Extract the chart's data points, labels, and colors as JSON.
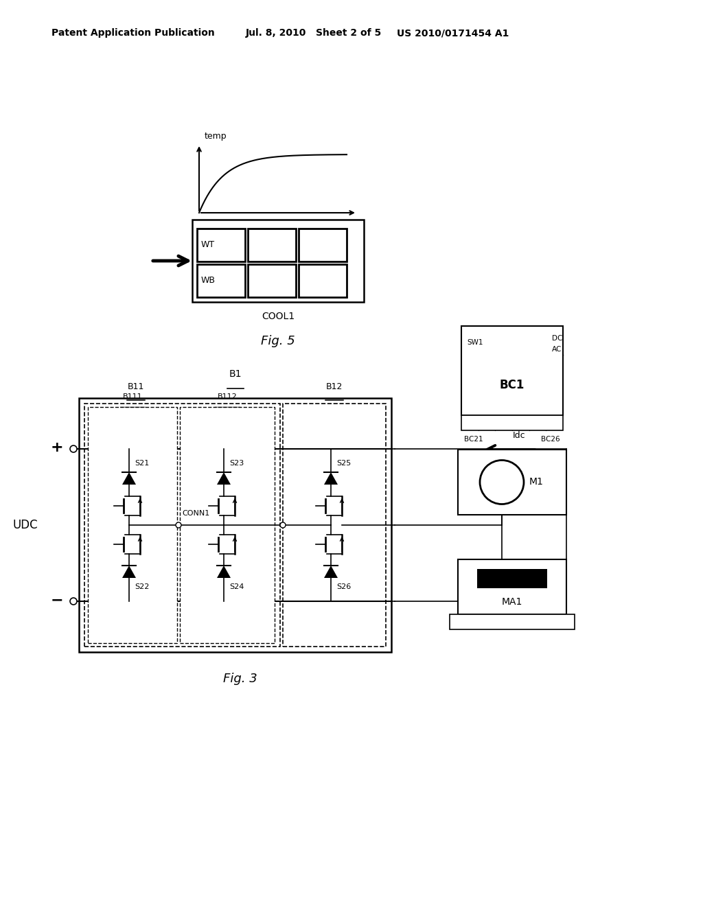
{
  "bg_color": "#ffffff",
  "header_left": "Patent Application Publication",
  "header_mid1": "Jul. 8, 2010",
  "header_mid2": "Sheet 2 of 5",
  "header_right": "US 2010/0171454 A1",
  "fig5_caption": "Fig. 5",
  "fig3_caption": "Fig. 3",
  "cool1_label": "COOL1",
  "temp_label": "temp",
  "wt_label": "WT",
  "wb_label": "WB",
  "udc_label": "UDC",
  "b1_label": "B1",
  "b11_label": "B11",
  "b12_label": "B12",
  "b111_label": "B111",
  "b112_label": "B112",
  "sw_top": [
    "S21",
    "S23",
    "S25"
  ],
  "sw_bot": [
    "S22",
    "S24",
    "S26"
  ],
  "conn1_label": "CONN1",
  "bc1_label": "BC1",
  "sw1_label": "SW1",
  "dc_label": "DC",
  "ac_label": "AC",
  "bc21_label": "BC21",
  "bc26_label": "BC26",
  "idc_label": "Idc",
  "m1_label": "M1",
  "ma1_label": "MA1"
}
